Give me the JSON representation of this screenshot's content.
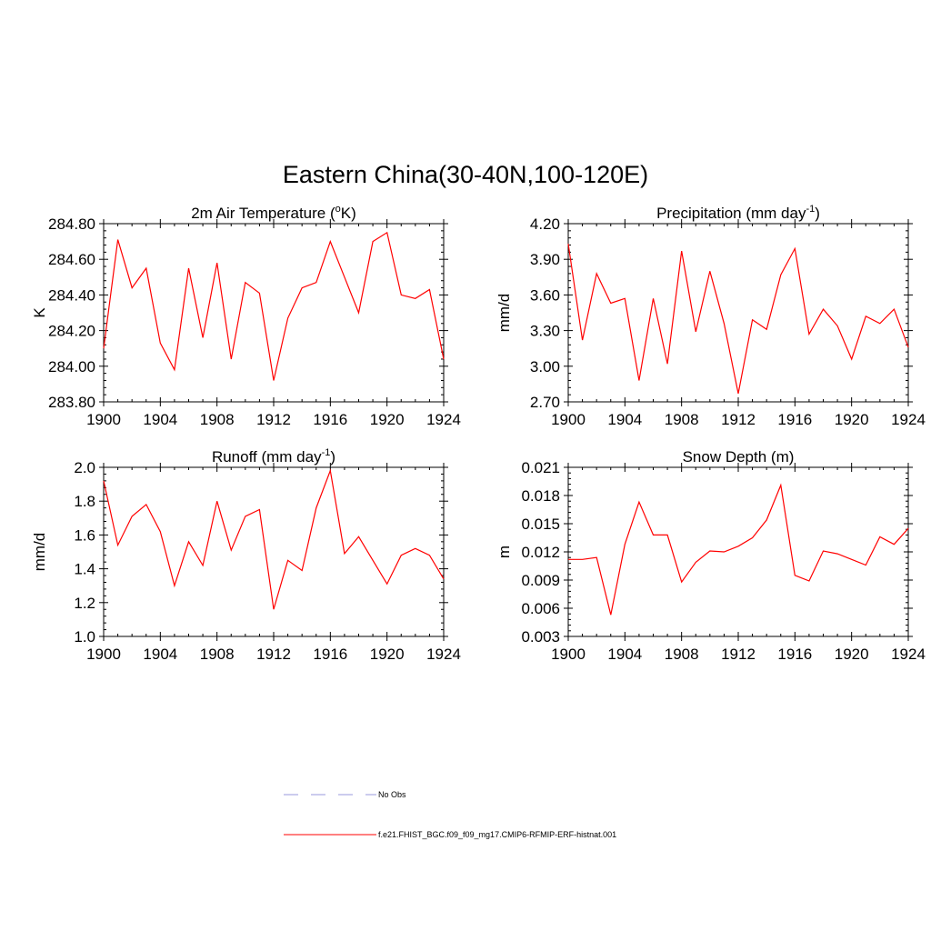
{
  "figure": {
    "title": "Eastern China(30-40N,100-120E)"
  },
  "legend": {
    "entries": [
      {
        "label": "No Obs",
        "style": "dashed",
        "color": "#9999dd"
      },
      {
        "label": "f.e21.FHIST_BGC.f09_f09_mg17.CMIP6-RFMIP-ERF-histnat.001",
        "style": "solid",
        "color": "#ff0000"
      }
    ]
  },
  "chart_data": [
    {
      "type": "line",
      "title": "2m Air Temperature (",
      "title_sup": "o",
      "title_tail": "K)",
      "ylabel": "K",
      "xlim": [
        1900,
        1924
      ],
      "ylim": [
        283.8,
        284.8
      ],
      "yticks": [
        283.8,
        284.0,
        284.2,
        284.4,
        284.6,
        284.8
      ],
      "ytick_labels": [
        "283.80",
        "284.00",
        "284.20",
        "284.40",
        "284.60",
        "284.80"
      ],
      "xticks": [
        1900,
        1904,
        1908,
        1912,
        1916,
        1920,
        1924
      ],
      "xtick_labels": [
        "1900",
        "1904",
        "1908",
        "1912",
        "1916",
        "1920",
        "1924"
      ],
      "series": [
        {
          "name": "f.e21.FHIST_BGC.f09_f09_mg17.CMIP6-RFMIP-ERF-histnat.001",
          "color": "#ff0000",
          "x": [
            1900,
            1901,
            1902,
            1903,
            1904,
            1905,
            1906,
            1907,
            1908,
            1909,
            1910,
            1911,
            1912,
            1913,
            1914,
            1915,
            1916,
            1917,
            1918,
            1919,
            1920,
            1921,
            1922,
            1923,
            1924
          ],
          "values": [
            284.1,
            284.71,
            284.44,
            284.55,
            284.13,
            283.98,
            284.55,
            284.16,
            284.58,
            284.04,
            284.47,
            284.41,
            283.92,
            284.27,
            284.44,
            284.47,
            284.7,
            284.5,
            284.3,
            284.7,
            284.75,
            284.4,
            284.38,
            284.43,
            284.04
          ]
        }
      ]
    },
    {
      "type": "line",
      "title": "Precipitation (mm day",
      "title_sup": "-1",
      "title_tail": ")",
      "ylabel": "mm/d",
      "xlim": [
        1900,
        1924
      ],
      "ylim": [
        2.7,
        4.2
      ],
      "yticks": [
        2.7,
        3.0,
        3.3,
        3.6,
        3.9,
        4.2
      ],
      "ytick_labels": [
        "2.70",
        "3.00",
        "3.30",
        "3.60",
        "3.90",
        "4.20"
      ],
      "xticks": [
        1900,
        1904,
        1908,
        1912,
        1916,
        1920,
        1924
      ],
      "xtick_labels": [
        "1900",
        "1904",
        "1908",
        "1912",
        "1916",
        "1920",
        "1924"
      ],
      "series": [
        {
          "name": "f.e21.FHIST_BGC.f09_f09_mg17.CMIP6-RFMIP-ERF-histnat.001",
          "color": "#ff0000",
          "x": [
            1900,
            1901,
            1902,
            1903,
            1904,
            1905,
            1906,
            1907,
            1908,
            1909,
            1910,
            1911,
            1912,
            1913,
            1914,
            1915,
            1916,
            1917,
            1918,
            1919,
            1920,
            1921,
            1922,
            1923,
            1924
          ],
          "values": [
            4.03,
            3.22,
            3.78,
            3.53,
            3.57,
            2.88,
            3.57,
            3.02,
            3.97,
            3.29,
            3.8,
            3.36,
            2.77,
            3.39,
            3.31,
            3.77,
            3.99,
            3.27,
            3.48,
            3.34,
            3.06,
            3.42,
            3.36,
            3.48,
            3.16
          ]
        }
      ]
    },
    {
      "type": "line",
      "title": "Runoff (mm day",
      "title_sup": "-1",
      "title_tail": ")",
      "ylabel": "mm/d",
      "xlim": [
        1900,
        1924
      ],
      "ylim": [
        1.0,
        2.0
      ],
      "yticks": [
        1.0,
        1.2,
        1.4,
        1.6,
        1.8,
        2.0
      ],
      "ytick_labels": [
        "1.0",
        "1.2",
        "1.4",
        "1.6",
        "1.8",
        "2.0"
      ],
      "xticks": [
        1900,
        1904,
        1908,
        1912,
        1916,
        1920,
        1924
      ],
      "xtick_labels": [
        "1900",
        "1904",
        "1908",
        "1912",
        "1916",
        "1920",
        "1924"
      ],
      "series": [
        {
          "name": "f.e21.FHIST_BGC.f09_f09_mg17.CMIP6-RFMIP-ERF-histnat.001",
          "color": "#ff0000",
          "x": [
            1900,
            1901,
            1902,
            1903,
            1904,
            1905,
            1906,
            1907,
            1908,
            1909,
            1910,
            1911,
            1912,
            1913,
            1914,
            1915,
            1916,
            1917,
            1918,
            1919,
            1920,
            1921,
            1922,
            1923,
            1924
          ],
          "values": [
            1.92,
            1.54,
            1.71,
            1.78,
            1.62,
            1.3,
            1.56,
            1.42,
            1.8,
            1.51,
            1.71,
            1.75,
            1.16,
            1.45,
            1.39,
            1.76,
            1.98,
            1.49,
            1.59,
            1.45,
            1.31,
            1.48,
            1.52,
            1.48,
            1.34
          ]
        }
      ]
    },
    {
      "type": "line",
      "title": "Snow Depth (m)",
      "title_sup": "",
      "title_tail": "",
      "ylabel": "m",
      "xlim": [
        1900,
        1924
      ],
      "ylim": [
        0.003,
        0.021
      ],
      "yticks": [
        0.003,
        0.006,
        0.009,
        0.012,
        0.015,
        0.018,
        0.021
      ],
      "ytick_labels": [
        "0.003",
        "0.006",
        "0.009",
        "0.012",
        "0.015",
        "0.018",
        "0.021"
      ],
      "xticks": [
        1900,
        1904,
        1908,
        1912,
        1916,
        1920,
        1924
      ],
      "xtick_labels": [
        "1900",
        "1904",
        "1908",
        "1912",
        "1916",
        "1920",
        "1924"
      ],
      "series": [
        {
          "name": "f.e21.FHIST_BGC.f09_f09_mg17.CMIP6-RFMIP-ERF-histnat.001",
          "color": "#ff0000",
          "x": [
            1900,
            1901,
            1902,
            1903,
            1904,
            1905,
            1906,
            1907,
            1908,
            1909,
            1910,
            1911,
            1912,
            1913,
            1914,
            1915,
            1916,
            1917,
            1918,
            1919,
            1920,
            1921,
            1922,
            1923,
            1924
          ],
          "values": [
            0.0112,
            0.0112,
            0.0114,
            0.0053,
            0.0128,
            0.0173,
            0.0138,
            0.0138,
            0.0088,
            0.0109,
            0.0121,
            0.012,
            0.0126,
            0.0135,
            0.0154,
            0.0191,
            0.0095,
            0.0089,
            0.0121,
            0.0118,
            0.0112,
            0.0106,
            0.0136,
            0.0128,
            0.0145
          ]
        }
      ]
    }
  ]
}
